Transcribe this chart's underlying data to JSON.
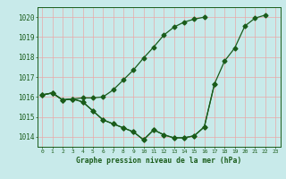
{
  "title": "Graphe pression niveau de la mer (hPa)",
  "bg_color": "#c8eaea",
  "grid_color": "#e8a8a8",
  "line_color": "#1a5c1a",
  "ylim": [
    1013.5,
    1020.5
  ],
  "yticks": [
    1014,
    1015,
    1016,
    1017,
    1018,
    1019,
    1020
  ],
  "xlim": [
    -0.5,
    23.5
  ],
  "s1_x": [
    0,
    1,
    2,
    3,
    4,
    5,
    6,
    7,
    8,
    9,
    10,
    11,
    12,
    13,
    14,
    15,
    16
  ],
  "s1_y": [
    1016.1,
    1016.2,
    1015.85,
    1015.9,
    1015.95,
    1015.95,
    1016.0,
    1016.35,
    1016.85,
    1017.35,
    1017.95,
    1018.5,
    1019.1,
    1019.5,
    1019.75,
    1019.9,
    1020.0
  ],
  "s2_x": [
    0,
    1,
    2,
    3,
    4,
    5,
    6,
    7,
    8,
    9,
    10,
    11,
    12,
    13,
    14,
    15,
    16,
    17
  ],
  "s2_y": [
    1016.1,
    1016.2,
    1015.85,
    1015.9,
    1015.75,
    1015.3,
    1014.85,
    1014.65,
    1014.45,
    1014.25,
    1013.85,
    1014.35,
    1014.1,
    1013.95,
    1013.95,
    1014.05,
    1014.5,
    1016.65
  ],
  "s3_x": [
    0,
    1,
    2,
    3,
    4,
    5,
    6,
    7,
    8,
    9,
    10,
    11,
    12,
    13,
    14,
    15,
    16,
    17,
    18,
    19,
    20,
    21,
    22
  ],
  "s3_y": [
    1016.1,
    1016.2,
    1015.85,
    1015.9,
    1015.75,
    1015.3,
    1014.85,
    1014.65,
    1014.45,
    1014.25,
    1013.85,
    1014.35,
    1014.1,
    1013.95,
    1013.95,
    1014.05,
    1014.5,
    1016.65,
    1017.8,
    1018.45,
    1019.55,
    1019.95,
    1020.1
  ]
}
